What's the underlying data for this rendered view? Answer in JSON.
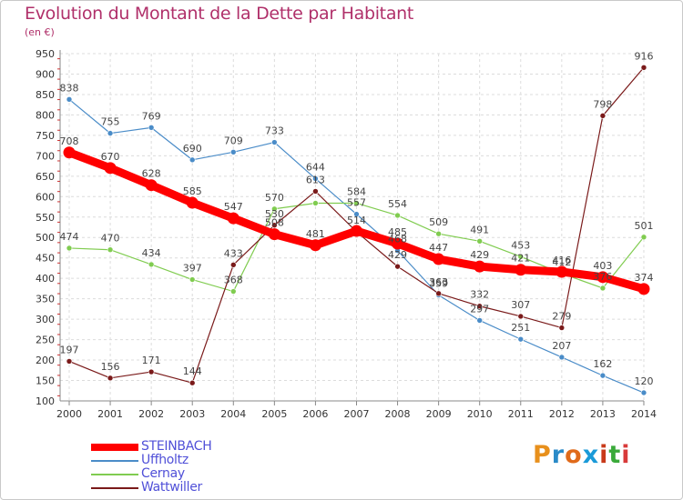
{
  "title": "Evolution du Montant de la Dette par Habitant",
  "unit_label": "(en €)",
  "brand": {
    "text": "Proxiti",
    "letters": [
      "P",
      "r",
      "o",
      "x",
      "i",
      "t",
      "i"
    ],
    "colors": [
      "#e8901c",
      "#2a8ac8",
      "#e06a1a",
      "#1a9ad8",
      "#c83a1a",
      "#3aaa3a",
      "#d83a3a"
    ]
  },
  "chart_data": {
    "type": "line",
    "title": "Evolution du Montant de la Dette par Habitant",
    "ylabel": "(en €)",
    "xlabel": "",
    "categories": [
      "2000",
      "2001",
      "2002",
      "2003",
      "2004",
      "2005",
      "2006",
      "2007",
      "2008",
      "2009",
      "2010",
      "2011",
      "2012",
      "2013",
      "2014"
    ],
    "ylim": [
      100,
      950
    ],
    "yticks": [
      100,
      150,
      200,
      250,
      300,
      350,
      400,
      450,
      500,
      550,
      600,
      650,
      700,
      750,
      800,
      850,
      900,
      950
    ],
    "grid": true,
    "legend_position": "bottom-left",
    "series": [
      {
        "name": "STEINBACH",
        "color": "#ff0000",
        "emphasis": true,
        "values": [
          708,
          670,
          628,
          585,
          547,
          508,
          481,
          516,
          485,
          447,
          429,
          421,
          416,
          403,
          374
        ],
        "labels": [
          "708",
          "670",
          "628",
          "585",
          "547",
          "508",
          "481",
          "",
          "485",
          "447",
          "429",
          "421",
          "416",
          "403",
          "374"
        ]
      },
      {
        "name": "Uffholtz",
        "color": "#4a8cc8",
        "values": [
          838,
          755,
          769,
          690,
          709,
          733,
          644,
          557,
          468,
          359,
          297,
          251,
          207,
          162,
          120
        ],
        "labels": [
          "838",
          "755",
          "769",
          "690",
          "709",
          "733",
          "644",
          "",
          "",
          "",
          "",
          "251",
          "207",
          "162",
          "120"
        ]
      },
      {
        "name": "Cernay",
        "color": "#80cc50",
        "values": [
          474,
          470,
          434,
          397,
          368,
          570,
          584,
          584,
          554,
          509,
          491,
          453,
          412,
          376,
          501
        ],
        "labels": [
          "474",
          "470",
          "434",
          "397",
          "368",
          "570",
          "",
          "584",
          "554",
          "509",
          "491",
          "453",
          "",
          "",
          "501"
        ]
      },
      {
        "name": "Wattwiller",
        "color": "#7a1a1a",
        "values": [
          197,
          156,
          171,
          144,
          433,
          530,
          613,
          514,
          429,
          363,
          332,
          307,
          279,
          798,
          916
        ],
        "labels": [
          "197",
          "156",
          "171",
          "144",
          "433",
          "",
          "",
          "",
          "",
          "",
          "332",
          "307",
          "279",
          "798",
          "916"
        ]
      }
    ],
    "overlapping_labels": [
      {
        "x": 5,
        "text": "530"
      },
      {
        "x": 6,
        "text": "613"
      },
      {
        "x": 7,
        "text": "557"
      },
      {
        "x": 7,
        "text": "514"
      },
      {
        "x": 8,
        "text": "468"
      },
      {
        "x": 8,
        "text": "429"
      },
      {
        "x": 9,
        "text": "359"
      },
      {
        "x": 9,
        "text": "363"
      },
      {
        "x": 10,
        "text": "297"
      },
      {
        "x": 12,
        "text": "412"
      },
      {
        "x": 13,
        "text": "376"
      }
    ]
  }
}
